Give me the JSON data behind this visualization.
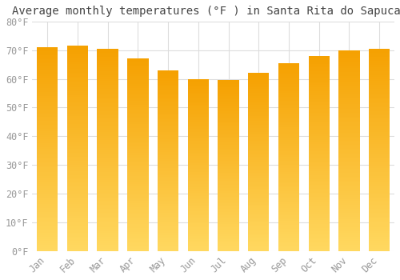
{
  "title": "Average monthly temperatures (°F ) in Santa Rita do Sapucaí-",
  "months": [
    "Jan",
    "Feb",
    "Mar",
    "Apr",
    "May",
    "Jun",
    "Jul",
    "Aug",
    "Sep",
    "Oct",
    "Nov",
    "Dec"
  ],
  "temperatures": [
    71,
    71.5,
    70.5,
    67,
    63,
    60,
    59.5,
    62,
    65.5,
    68,
    70,
    70.5
  ],
  "bar_color_top": "#F5A000",
  "bar_color_bottom": "#FFD860",
  "ylim": [
    0,
    80
  ],
  "ytick_step": 10,
  "background_color": "#ffffff",
  "plot_bg_color": "#ffffff",
  "grid_color": "#dddddd",
  "title_fontsize": 10,
  "tick_fontsize": 8.5,
  "tick_label_color": "#999999",
  "font_family": "monospace",
  "bar_width": 0.7,
  "gradient_steps": 100
}
